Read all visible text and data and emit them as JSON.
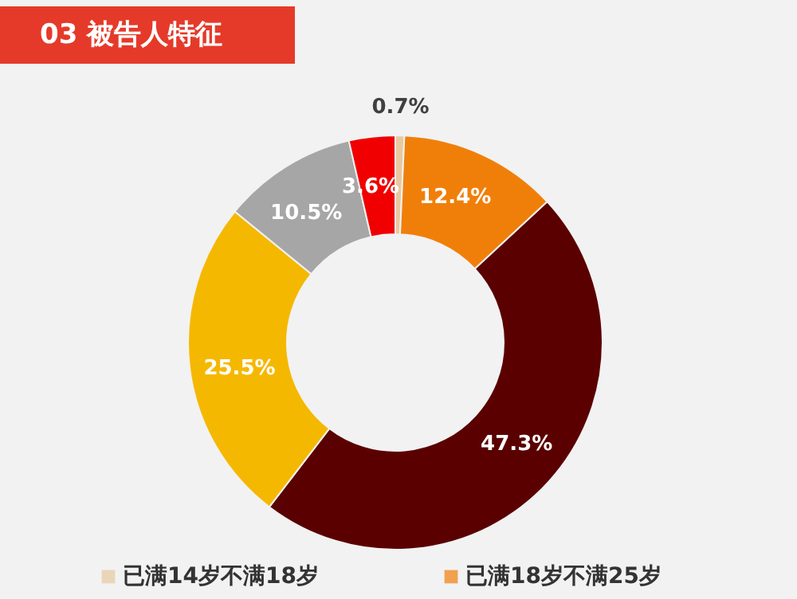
{
  "chart_data": {
    "type": "donut",
    "title": "03  被告人特征",
    "categories": [
      "已满14岁不满18岁",
      "已满18岁不满25岁",
      null,
      null,
      null,
      null
    ],
    "values": [
      0.7,
      12.4,
      47.3,
      25.5,
      10.5,
      3.6
    ],
    "colors": [
      "#e8c9a0",
      "#f07f0a",
      "#5a0000",
      "#f5b800",
      "#a6a6a6",
      "#f00000"
    ],
    "value_labels": [
      "0.7%",
      "12.4%",
      "47.3%",
      "25.5%",
      "10.5%",
      "3.6%"
    ],
    "legend": "bottom"
  }
}
